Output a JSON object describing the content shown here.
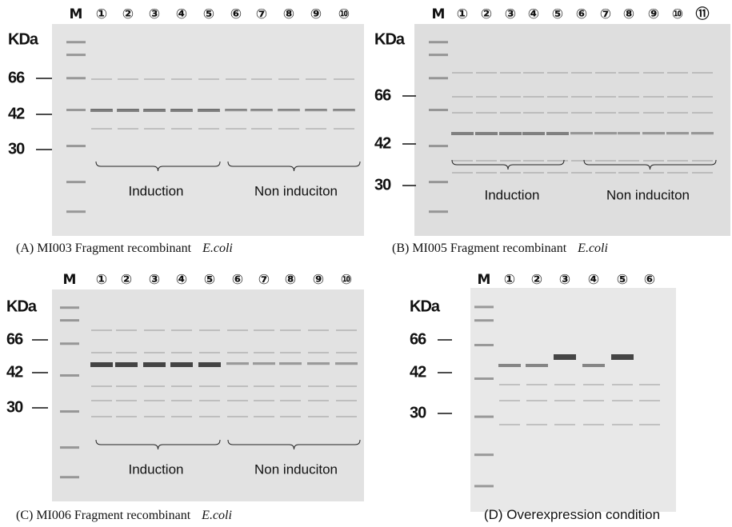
{
  "panels": [
    {
      "lanes": [
        "M",
        "①",
        "②",
        "③",
        "④",
        "⑤",
        "⑥",
        "⑦",
        "⑧",
        "⑨",
        "⑩"
      ],
      "markers": [
        "KDa",
        "66",
        "42",
        "30"
      ],
      "groups": [
        "Induction",
        "Non induciton"
      ],
      "caption": "(A) MI003 Fragment recombinant",
      "caption_organism": "E.coli"
    },
    {
      "lanes": [
        "M",
        "①",
        "②",
        "③",
        "④",
        "⑤",
        "⑥",
        "⑦",
        "⑧",
        "⑨",
        "⑩",
        "⑪"
      ],
      "markers": [
        "KDa",
        "66",
        "42",
        "30"
      ],
      "groups": [
        "Induction",
        "Non induciton"
      ],
      "caption": "(B) MI005 Fragment recombinant",
      "caption_organism": "E.coli"
    },
    {
      "lanes": [
        "M",
        "①",
        "②",
        "③",
        "④",
        "⑤",
        "⑥",
        "⑦",
        "⑧",
        "⑨",
        "⑩"
      ],
      "markers": [
        "KDa",
        "66",
        "42",
        "30"
      ],
      "groups": [
        "Induction",
        "Non induciton"
      ],
      "caption": "(C) MI006 Fragment recombinant",
      "caption_organism": "E.coli"
    },
    {
      "lanes": [
        "M",
        "①",
        "②",
        "③",
        "④",
        "⑤",
        "⑥"
      ],
      "markers": [
        "KDa",
        "66",
        "42",
        "30"
      ],
      "caption": "(D) Overexpression condition"
    }
  ]
}
